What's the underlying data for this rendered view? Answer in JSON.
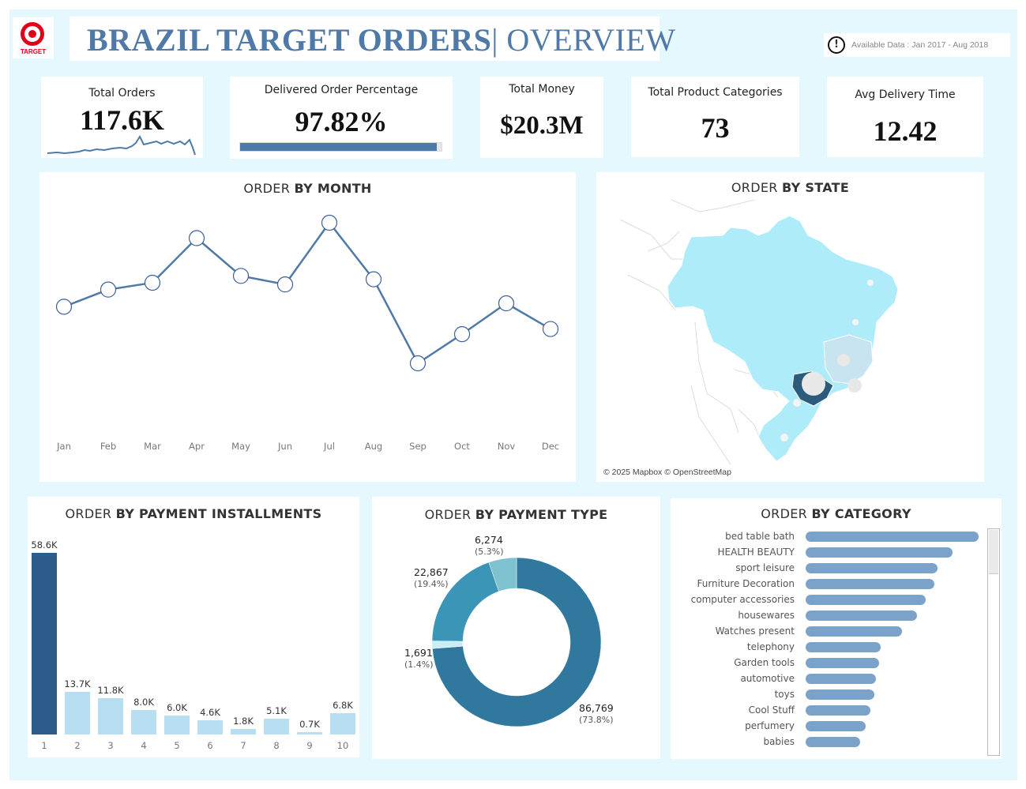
{
  "header": {
    "title_bold": "BRAZIL TARGET ORDERS",
    "title_rest": "| OVERVIEW",
    "logo_text": "TARGET",
    "available_data": "Available Data :  Jan 2017 -  Aug 2018"
  },
  "kpis": {
    "total_orders": {
      "label": "Total Orders",
      "value": "117.6K"
    },
    "delivered": {
      "label": "Delivered Order Percentage",
      "value": "97.82%",
      "fraction": 0.9782
    },
    "total_money": {
      "label": "Total Money",
      "value": "$20.3M"
    },
    "categories": {
      "label": "Total Product Categories",
      "value": "73"
    },
    "avg_delivery": {
      "label": "Avg Delivery Time",
      "value": "12.42"
    }
  },
  "order_by_month": {
    "title_plain": "ORDER ",
    "title_bold": "BY MONTH",
    "chart_data": {
      "type": "line",
      "categories": [
        "Jan",
        "Feb",
        "Mar",
        "Apr",
        "May",
        "Jun",
        "Jul",
        "Aug",
        "Sep",
        "Oct",
        "Nov",
        "Dec"
      ],
      "values": [
        7.6,
        8.6,
        9.0,
        11.6,
        9.4,
        8.9,
        12.5,
        9.2,
        4.3,
        6.0,
        7.8,
        6.3
      ]
    }
  },
  "order_by_state": {
    "title_plain": "ORDER ",
    "title_bold": "BY STATE",
    "attribution": "© 2025 Mapbox © OpenStreetMap"
  },
  "order_by_installments": {
    "title_plain": "ORDER ",
    "title_bold": "BY PAYMENT INSTALLMENTS",
    "chart_data": {
      "type": "bar",
      "categories": [
        "1",
        "2",
        "3",
        "4",
        "5",
        "6",
        "7",
        "8",
        "9",
        "10"
      ],
      "values": [
        58.6,
        13.7,
        11.8,
        8.0,
        6.0,
        4.6,
        1.8,
        5.1,
        0.7,
        6.8
      ],
      "labels": [
        "58.6K",
        "13.7K",
        "11.8K",
        "8.0K",
        "6.0K",
        "4.6K",
        "1.8K",
        "5.1K",
        "0.7K",
        "6.8K"
      ],
      "colors": {
        "highlight": "#2c5c8a",
        "normal": "#b8dff1"
      }
    }
  },
  "order_by_payment_type": {
    "title_plain": "ORDER ",
    "title_bold": "BY PAYMENT TYPE",
    "chart_data": {
      "type": "pie",
      "values": [
        86769,
        1691,
        22867,
        6274
      ],
      "labels": [
        "86,769",
        "1,691",
        "22,867",
        "6,274"
      ],
      "percents": [
        "(73.8%)",
        "(1.4%)",
        "(19.4%)",
        "(5.3%)"
      ],
      "colors": [
        "#31789f",
        "#c8eef9",
        "#3a95b7",
        "#7fc2cf"
      ]
    }
  },
  "order_by_category": {
    "title_plain": "ORDER ",
    "title_bold": "BY CATEGORY",
    "chart_data": {
      "type": "bar",
      "orientation": "horizontal",
      "categories": [
        "bed table bath",
        "HEALTH BEAUTY",
        "sport leisure",
        "Furniture Decoration",
        "computer accessories",
        "housewares",
        "Watches present",
        "telephony",
        "Garden tools",
        "automotive",
        "toys",
        "Cool Stuff",
        "perfumery",
        "babies"
      ],
      "values": [
        11800,
        10000,
        9000,
        8800,
        8200,
        7600,
        6600,
        5100,
        5000,
        4800,
        4700,
        4400,
        4100,
        3700
      ],
      "color": "#7ba3c9"
    }
  }
}
